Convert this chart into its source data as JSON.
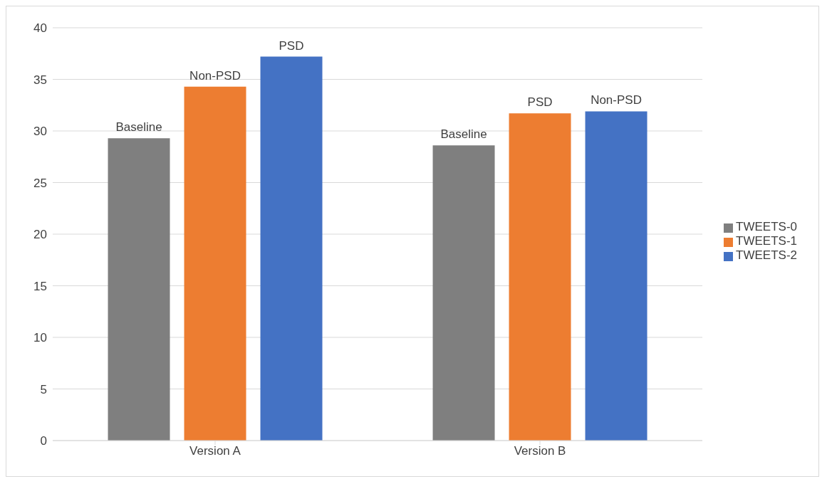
{
  "chart_data": {
    "type": "bar",
    "categories": [
      "Version A",
      "Version B"
    ],
    "series": [
      {
        "name": "TWEETS-0",
        "color": "#7f7f7f",
        "values": [
          29.3,
          28.6
        ],
        "value_labels": [
          "Baseline",
          "Baseline"
        ]
      },
      {
        "name": "TWEETS-1",
        "color": "#ed7d31",
        "values": [
          34.3,
          31.7
        ],
        "value_labels": [
          "Non-PSD",
          "PSD"
        ]
      },
      {
        "name": "TWEETS-2",
        "color": "#4472c4",
        "values": [
          37.2,
          31.9
        ],
        "value_labels": [
          "PSD",
          "Non-PSD"
        ]
      }
    ],
    "ylim": [
      0,
      40
    ],
    "yticks": [
      0,
      5,
      10,
      15,
      20,
      25,
      30,
      35,
      40
    ],
    "grid": "y",
    "legend": "right"
  }
}
